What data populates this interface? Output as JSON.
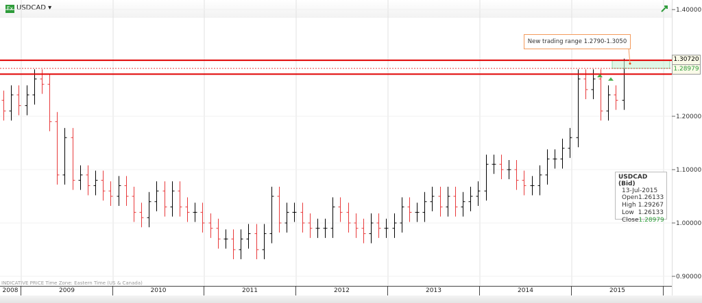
{
  "header": {
    "symbol": "USDCAD",
    "badge": "Fx"
  },
  "footer": {
    "note": "INDICATIVE PRICE   Time Zone: Eastern Time (US & Canada)"
  },
  "price_tags": {
    "upper": "1.30720",
    "current": "1.28979"
  },
  "annotation": "New trading range 1.2790-1.3050",
  "tooltip": {
    "title": "USDCAD (Bid)",
    "date": "13-Jul-2015",
    "rows": [
      {
        "k": "Open",
        "v": "1.26133"
      },
      {
        "k": "High",
        "v": "1.29267"
      },
      {
        "k": "Low",
        "v": "1.26133"
      },
      {
        "k": "Close",
        "v": "1.28979"
      }
    ]
  },
  "colors": {
    "up": "#000000",
    "down": "#e8393a",
    "range_line": "#e00000",
    "range_box": "#c9f0d6",
    "positive": "#2e9c3a"
  },
  "chart_data": {
    "type": "ohlc",
    "title": "",
    "ylim": [
      0.86,
      1.42
    ],
    "yticks": [
      "1.40000",
      "1.20000",
      "1.10000",
      "1.00000",
      "0.90000"
    ],
    "ytick_values": [
      1.4,
      1.2,
      1.1,
      1.0,
      0.9
    ],
    "years": [
      "2008",
      "2009",
      "2010",
      "2011",
      "2012",
      "2013",
      "2014",
      "2015"
    ],
    "x_start": "2008-10",
    "x_end": "2015-07",
    "monthly_close": [
      1.21,
      1.24,
      1.22,
      1.24,
      1.27,
      1.26,
      1.19,
      1.09,
      1.16,
      1.08,
      1.09,
      1.07,
      1.08,
      1.06,
      1.05,
      1.07,
      1.05,
      1.02,
      1.01,
      1.04,
      1.06,
      1.03,
      1.06,
      1.03,
      1.02,
      1.02,
      1.0,
      0.99,
      0.97,
      0.97,
      0.95,
      0.97,
      0.98,
      0.95,
      0.98,
      1.05,
      1.0,
      1.02,
      1.02,
      1.0,
      0.99,
      0.99,
      0.99,
      1.03,
      1.02,
      1.0,
      0.99,
      0.98,
      1.0,
      0.99,
      0.99,
      1.0,
      1.03,
      1.02,
      1.02,
      1.04,
      1.05,
      1.03,
      1.05,
      1.03,
      1.04,
      1.05,
      1.06,
      1.11,
      1.11,
      1.1,
      1.1,
      1.08,
      1.07,
      1.07,
      1.09,
      1.12,
      1.12,
      1.14,
      1.16,
      1.27,
      1.25,
      1.27,
      1.21,
      1.24,
      1.23,
      1.29
    ],
    "range_lines": [
      1.305,
      1.279
    ],
    "current_price": 1.28979,
    "grid": true
  }
}
